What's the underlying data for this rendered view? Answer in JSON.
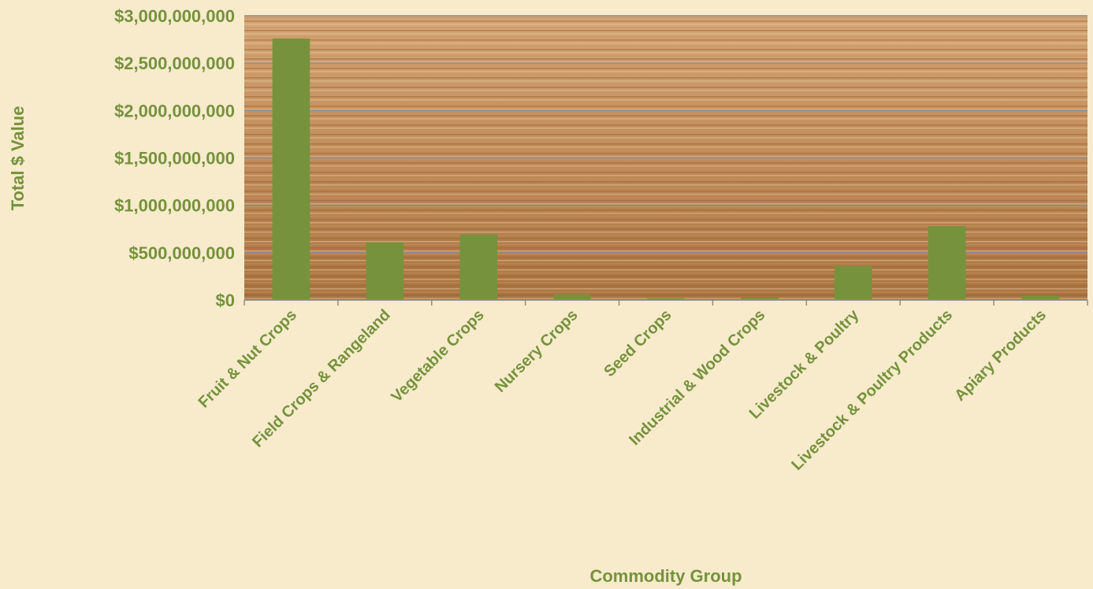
{
  "chart_data": {
    "type": "bar",
    "title": "",
    "xlabel": "Commodity Group",
    "ylabel": "Total $ Value",
    "categories": [
      "Fruit & Nut Crops",
      "Field Crops & Rangeland",
      "Vegetable Crops",
      "Nursery Crops",
      "Seed Crops",
      "Industrial & Wood Crops",
      "Livestock & Poultry",
      "Livestock & Poultry Products",
      "Apiary Products"
    ],
    "values": [
      2760000000,
      610000000,
      690000000,
      60000000,
      20000000,
      25000000,
      360000000,
      780000000,
      45000000
    ],
    "ylim": [
      0,
      3000000000
    ],
    "yticks": [
      0,
      500000000,
      1000000000,
      1500000000,
      2000000000,
      2500000000,
      3000000000
    ],
    "ytick_labels": [
      "$0",
      "$500,000,000",
      "$1,000,000,000",
      "$1,500,000,000",
      "$2,000,000,000",
      "$2,500,000,000",
      "$3,000,000,000"
    ],
    "grid": true,
    "legend": "none"
  },
  "colors": {
    "bar": "#76923c",
    "text": "#76923c",
    "page_background": "#f7ebcc",
    "plot_background": "#c08c5a",
    "gridline": "#8c8c8c"
  }
}
